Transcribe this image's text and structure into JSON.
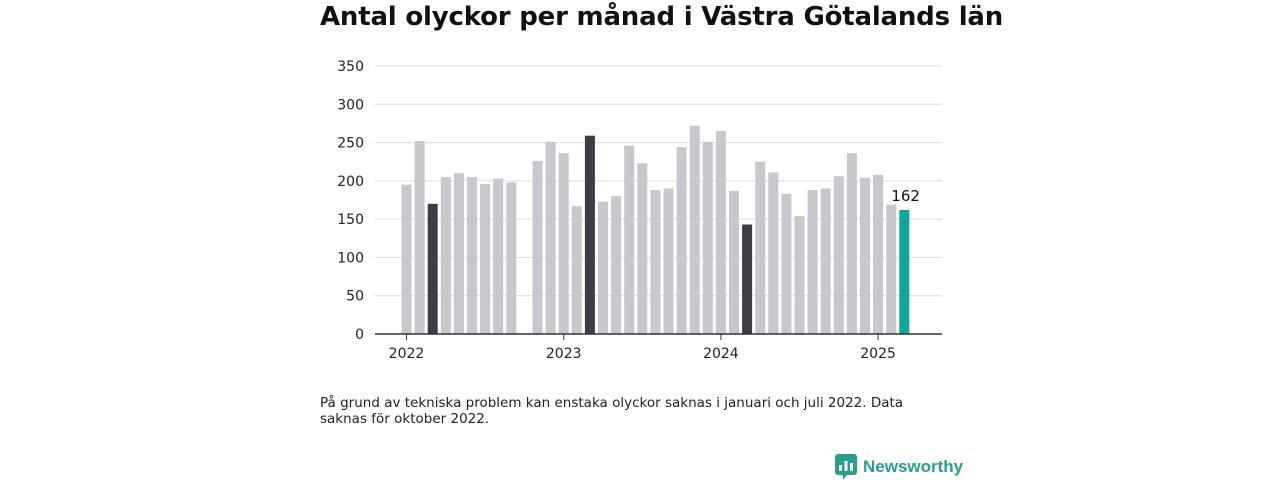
{
  "title": "Antal olyckor per månad i Västra Götalands län",
  "footnote": "På grund av tekniska problem kan enstaka olyckor saknas i januari och juli 2022. Data saknas för oktober 2022.",
  "brand": "Newsworthy",
  "colors": {
    "default": "#c8c7cd",
    "highlight": "#3d3c47",
    "latest": "#12a59c",
    "grid": "#dcdcdc",
    "axis": "#333333",
    "brand": "#2a9d8f"
  },
  "chart_data": {
    "type": "bar",
    "title": "Antal olyckor per månad i Västra Götalands län",
    "xlabel": "",
    "ylabel": "",
    "ylim": [
      0,
      350
    ],
    "yticks": [
      0,
      50,
      100,
      150,
      200,
      250,
      300,
      350
    ],
    "xticks": [
      {
        "label": "2022",
        "month": "2022-01"
      },
      {
        "label": "2023",
        "month": "2023-01"
      },
      {
        "label": "2024",
        "month": "2024-01"
      },
      {
        "label": "2025",
        "month": "2025-01"
      }
    ],
    "grid": true,
    "legend": "none",
    "highlighted_months": [
      "2022-03",
      "2023-03",
      "2024-03"
    ],
    "latest_label": "162",
    "bars": [
      {
        "month": "2022-01",
        "value": 195
      },
      {
        "month": "2022-02",
        "value": 252
      },
      {
        "month": "2022-03",
        "value": 170
      },
      {
        "month": "2022-04",
        "value": 205
      },
      {
        "month": "2022-05",
        "value": 210
      },
      {
        "month": "2022-06",
        "value": 205
      },
      {
        "month": "2022-07",
        "value": 196
      },
      {
        "month": "2022-08",
        "value": 203
      },
      {
        "month": "2022-09",
        "value": 198
      },
      {
        "month": "2022-10",
        "value": null
      },
      {
        "month": "2022-11",
        "value": 226
      },
      {
        "month": "2022-12",
        "value": 251
      },
      {
        "month": "2023-01",
        "value": 236
      },
      {
        "month": "2023-02",
        "value": 167
      },
      {
        "month": "2023-03",
        "value": 259
      },
      {
        "month": "2023-04",
        "value": 173
      },
      {
        "month": "2023-05",
        "value": 180
      },
      {
        "month": "2023-06",
        "value": 246
      },
      {
        "month": "2023-07",
        "value": 223
      },
      {
        "month": "2023-08",
        "value": 188
      },
      {
        "month": "2023-09",
        "value": 190
      },
      {
        "month": "2023-10",
        "value": 244
      },
      {
        "month": "2023-11",
        "value": 272
      },
      {
        "month": "2023-12",
        "value": 251
      },
      {
        "month": "2024-01",
        "value": 265
      },
      {
        "month": "2024-02",
        "value": 187
      },
      {
        "month": "2024-03",
        "value": 143
      },
      {
        "month": "2024-04",
        "value": 225
      },
      {
        "month": "2024-05",
        "value": 211
      },
      {
        "month": "2024-06",
        "value": 183
      },
      {
        "month": "2024-07",
        "value": 154
      },
      {
        "month": "2024-08",
        "value": 188
      },
      {
        "month": "2024-09",
        "value": 190
      },
      {
        "month": "2024-10",
        "value": 206
      },
      {
        "month": "2024-11",
        "value": 236
      },
      {
        "month": "2024-12",
        "value": 204
      },
      {
        "month": "2025-01",
        "value": 208
      },
      {
        "month": "2025-02",
        "value": 169
      },
      {
        "month": "2025-03",
        "value": 162
      }
    ]
  }
}
